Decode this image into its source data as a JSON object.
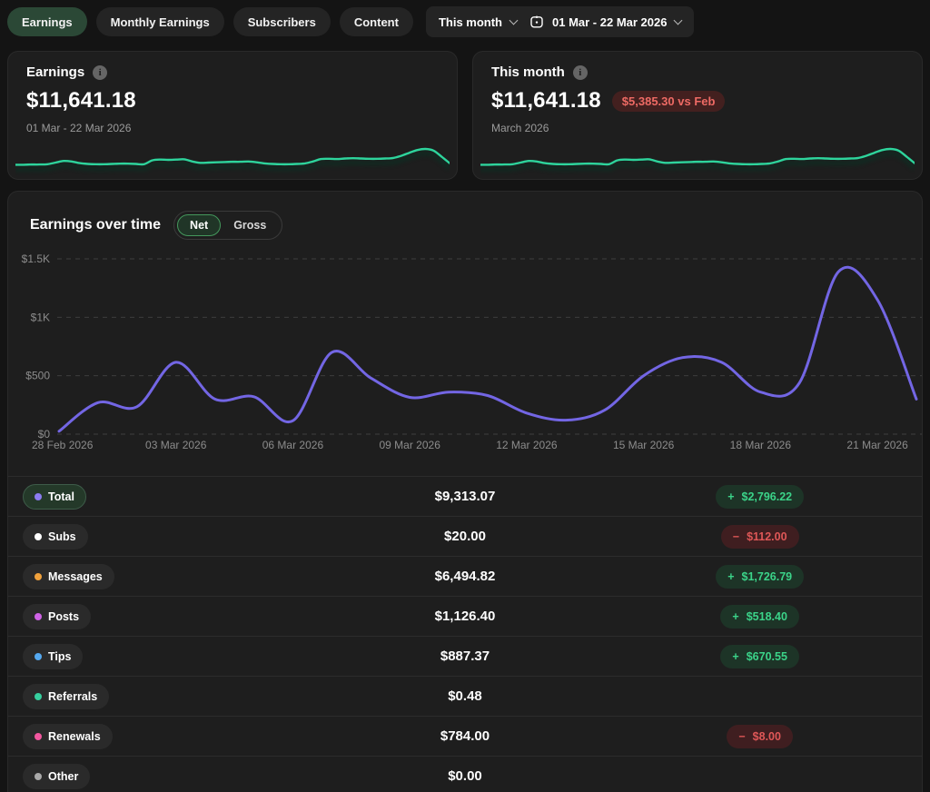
{
  "topbar": {
    "tabs": [
      {
        "id": "earnings",
        "label": "Earnings",
        "active": true
      },
      {
        "id": "monthly-earnings",
        "label": "Monthly Earnings",
        "active": false
      },
      {
        "id": "subscribers",
        "label": "Subscribers",
        "active": false
      },
      {
        "id": "content",
        "label": "Content",
        "active": false
      }
    ],
    "period_select": "This month",
    "date_range": "01 Mar - 22 Mar 2026"
  },
  "cards": [
    {
      "title": "Earnings",
      "amount": "$11,641.18",
      "subtitle": "01 Mar - 22 Mar 2026"
    },
    {
      "title": "This month",
      "amount": "$11,641.18",
      "comparison_badge": "$5,385.30 vs Feb",
      "subtitle": "March 2026"
    }
  ],
  "earnings_over_time": {
    "title": "Earnings over time",
    "toggle": [
      {
        "id": "net",
        "label": "Net",
        "active": true
      },
      {
        "id": "gross",
        "label": "Gross",
        "active": false
      }
    ]
  },
  "chart_data": {
    "type": "line",
    "title": "Earnings over time (Net)",
    "x": [
      "28 Feb 2026",
      "01 Mar 2026",
      "02 Mar 2026",
      "03 Mar 2026",
      "04 Mar 2026",
      "05 Mar 2026",
      "06 Mar 2026",
      "07 Mar 2026",
      "08 Mar 2026",
      "09 Mar 2026",
      "10 Mar 2026",
      "11 Mar 2026",
      "12 Mar 2026",
      "13 Mar 2026",
      "14 Mar 2026",
      "15 Mar 2026",
      "16 Mar 2026",
      "17 Mar 2026",
      "18 Mar 2026",
      "19 Mar 2026",
      "20 Mar 2026",
      "21 Mar 2026",
      "22 Mar 2026"
    ],
    "values": [
      25,
      270,
      235,
      615,
      300,
      320,
      115,
      700,
      480,
      315,
      360,
      330,
      180,
      120,
      205,
      500,
      655,
      615,
      360,
      440,
      1390,
      1150,
      300
    ],
    "ylim": [
      0,
      1500
    ],
    "yticks": [
      {
        "label": "$0",
        "value": 0
      },
      {
        "label": "$500",
        "value": 500
      },
      {
        "label": "$1K",
        "value": 1000
      },
      {
        "label": "$1.5K",
        "value": 1500
      }
    ],
    "xtick_labels": [
      "28 Feb 2026",
      "03 Mar 2026",
      "06 Mar 2026",
      "09 Mar 2026",
      "12 Mar 2026",
      "15 Mar 2026",
      "18 Mar 2026",
      "21 Mar 2026"
    ],
    "xtick_indices": [
      0,
      3,
      6,
      9,
      12,
      15,
      18,
      21
    ],
    "line_color": "#7366e4",
    "grid": "dashed-horizontal",
    "legend_position": "none"
  },
  "sparkline": {
    "color": "#2ed49c",
    "values": [
      22,
      22,
      23,
      23,
      24,
      30,
      36,
      34,
      28,
      25,
      24,
      24,
      25,
      26,
      26,
      25,
      24,
      38,
      41,
      40,
      41,
      42,
      34,
      29,
      30,
      31,
      32,
      33,
      33,
      34,
      31,
      27,
      25,
      24,
      24,
      25,
      27,
      34,
      43,
      44,
      43,
      45,
      46,
      45,
      44,
      44,
      45,
      47,
      55,
      66,
      76,
      80,
      74,
      52,
      28
    ]
  },
  "table": {
    "rows": [
      {
        "label": "Total",
        "dot_color": "#8b7cf0",
        "selected": true,
        "value": "$9,313.07",
        "change": "$2,796.22",
        "direction": "up"
      },
      {
        "label": "Subs",
        "dot_color": "#ffffff",
        "selected": false,
        "value": "$20.00",
        "change": "$112.00",
        "direction": "down"
      },
      {
        "label": "Messages",
        "dot_color": "#f0a13c",
        "selected": false,
        "value": "$6,494.82",
        "change": "$1,726.79",
        "direction": "up"
      },
      {
        "label": "Posts",
        "dot_color": "#cf63e6",
        "selected": false,
        "value": "$1,126.40",
        "change": "$518.40",
        "direction": "up"
      },
      {
        "label": "Tips",
        "dot_color": "#55a9f0",
        "selected": false,
        "value": "$887.37",
        "change": "$670.55",
        "direction": "up"
      },
      {
        "label": "Referrals",
        "dot_color": "#36cf9e",
        "selected": false,
        "value": "$0.48",
        "change": null,
        "direction": null
      },
      {
        "label": "Renewals",
        "dot_color": "#f2579f",
        "selected": false,
        "value": "$784.00",
        "change": "$8.00",
        "direction": "down"
      },
      {
        "label": "Other",
        "dot_color": "#a9a9a9",
        "selected": false,
        "value": "$0.00",
        "change": null,
        "direction": null
      }
    ],
    "signs": {
      "up": "+",
      "down": "−"
    }
  },
  "colors": {
    "page_bg": "#141414",
    "card_bg": "#1e1e1e",
    "accent_green": "#3bd389",
    "accent_red": "#de5757",
    "chart_line": "#7366e4",
    "sparkline": "#2ed49c",
    "grid_line": "#3d3d3d",
    "axis_label": "#8c8c8c"
  }
}
